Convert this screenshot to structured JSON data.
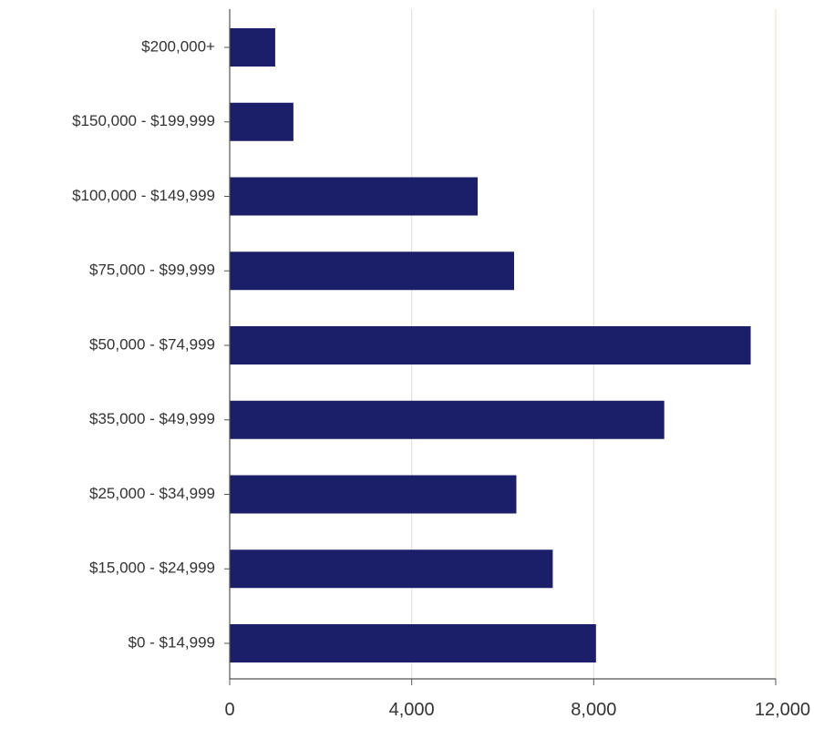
{
  "chart_data": {
    "type": "bar",
    "orientation": "horizontal",
    "categories": [
      "$200,000+",
      "$150,000 - $199,999",
      "$100,000 - $149,999",
      "$75,000 - $99,999",
      "$50,000 - $74,999",
      "$35,000 - $49,999",
      "$25,000 - $34,999",
      "$15,000 - $24,999",
      "$0 - $14,999"
    ],
    "values": [
      1000,
      1400,
      5450,
      6250,
      11450,
      9550,
      6300,
      7100,
      8050
    ],
    "xlim": [
      0,
      12000
    ],
    "x_ticks": [
      0,
      4000,
      8000,
      12000
    ],
    "x_tick_labels": [
      "0",
      "4,000",
      "8,000",
      "12,000"
    ],
    "title": "",
    "xlabel": "",
    "ylabel": "",
    "grid": "vertical",
    "colors": {
      "bar": "#1b1f6a",
      "grid": "#f1d8c8",
      "axis": "#555555"
    }
  }
}
